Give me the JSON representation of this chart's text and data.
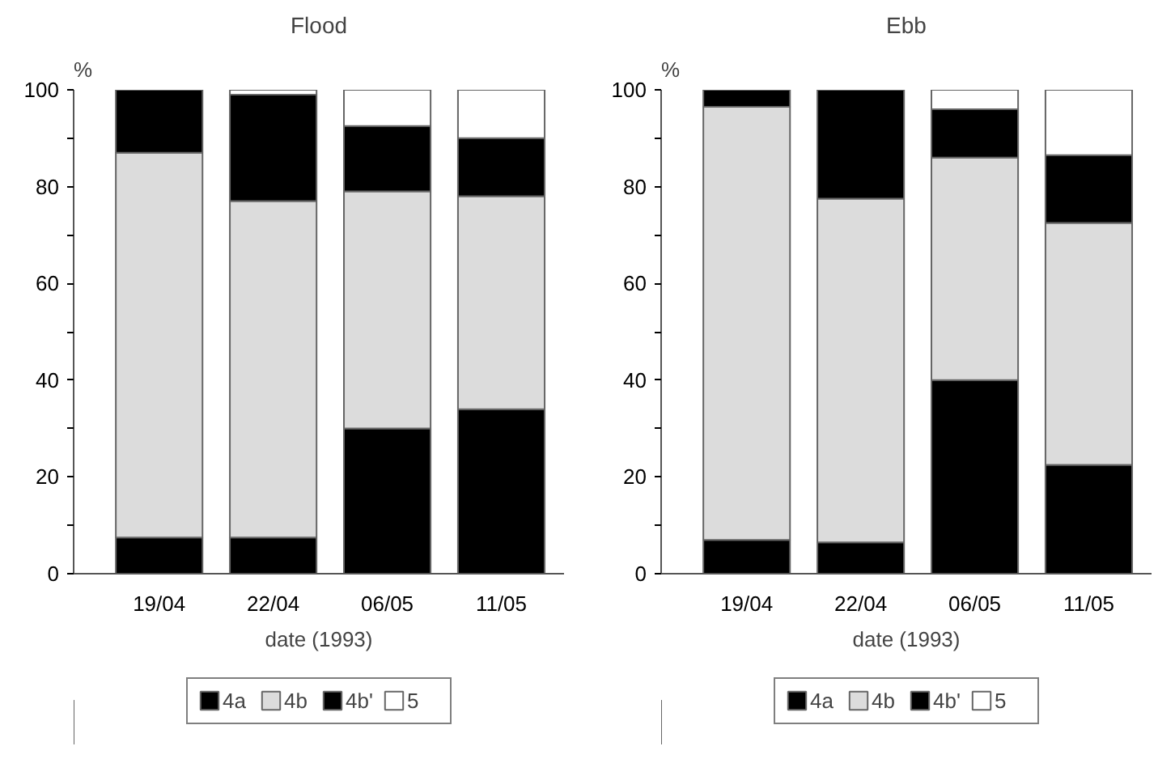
{
  "chart_data": [
    {
      "type": "bar",
      "title": "Flood",
      "xlabel": "date (1993)",
      "ylabel": "%",
      "stacked": true,
      "categories": [
        "19/04",
        "22/04",
        "06/05",
        "11/05"
      ],
      "ylim": [
        0,
        100
      ],
      "yticks": [
        0,
        {
          "value": 10,
          "label": null
        },
        20,
        {
          "value": 30,
          "label": null
        },
        40,
        {
          "value": 50,
          "label": null
        },
        60,
        {
          "value": 70,
          "label": null
        },
        80,
        {
          "value": 90,
          "label": null
        },
        100
      ],
      "grid": false,
      "legend": "bottom",
      "series": [
        {
          "name": "4a",
          "color": "#000000",
          "values": [
            7.5,
            7.5,
            30,
            34
          ]
        },
        {
          "name": "4b",
          "color": "#dcdcdc",
          "values": [
            79.5,
            69.5,
            49,
            44
          ]
        },
        {
          "name": "4b'",
          "color": "#000000",
          "values": [
            13,
            22,
            13.5,
            12
          ]
        },
        {
          "name": "5",
          "color": "#ffffff",
          "values": [
            0,
            1,
            7.5,
            10
          ]
        }
      ]
    },
    {
      "type": "bar",
      "title": "Ebb",
      "xlabel": "date (1993)",
      "ylabel": "%",
      "stacked": true,
      "categories": [
        "19/04",
        "22/04",
        "06/05",
        "11/05"
      ],
      "ylim": [
        0,
        100
      ],
      "yticks": [
        0,
        {
          "value": 10,
          "label": null
        },
        20,
        {
          "value": 30,
          "label": null
        },
        40,
        {
          "value": 50,
          "label": null
        },
        60,
        {
          "value": 70,
          "label": null
        },
        80,
        {
          "value": 90,
          "label": null
        },
        100
      ],
      "grid": false,
      "legend": "bottom",
      "series": [
        {
          "name": "4a",
          "color": "#000000",
          "values": [
            7,
            6.5,
            40,
            22.5
          ]
        },
        {
          "name": "4b",
          "color": "#dcdcdc",
          "values": [
            89.5,
            71,
            46,
            50
          ]
        },
        {
          "name": "4b'",
          "color": "#000000",
          "values": [
            3.5,
            22.5,
            10,
            14
          ]
        },
        {
          "name": "5",
          "color": "#ffffff",
          "values": [
            0,
            0,
            4,
            13.5
          ]
        }
      ]
    }
  ]
}
